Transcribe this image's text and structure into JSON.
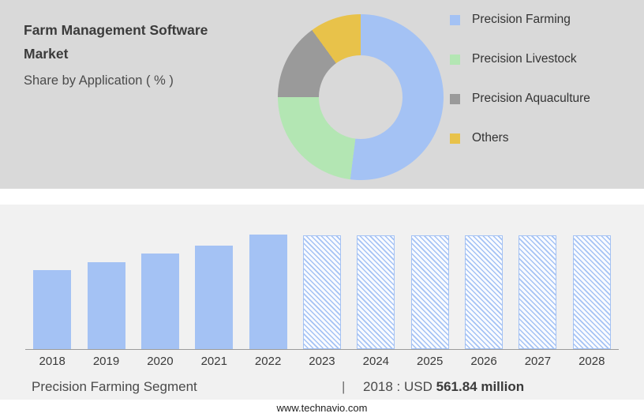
{
  "header": {
    "title": "Farm Management Software Market",
    "subtitle": "Share by Application ( % )"
  },
  "legend": [
    {
      "label": "Precision Farming",
      "color": "#a4c2f4"
    },
    {
      "label": "Precision Livestock",
      "color": "#b3e6b3"
    },
    {
      "label": "Precision Aquaculture",
      "color": "#9a9a9a"
    },
    {
      "label": "Others",
      "color": "#e8c24a"
    }
  ],
  "chart_data": [
    {
      "type": "pie",
      "donut": true,
      "title": "Share by Application ( % )",
      "labels": [
        "Precision Farming",
        "Precision Livestock",
        "Precision Aquaculture",
        "Others"
      ],
      "values": [
        52,
        23,
        15,
        10
      ],
      "colors": [
        "#a4c2f4",
        "#b3e6b3",
        "#9a9a9a",
        "#e8c24a"
      ],
      "legend_position": "right"
    },
    {
      "type": "bar",
      "categories": [
        "2018",
        "2019",
        "2020",
        "2021",
        "2022",
        "2023",
        "2024",
        "2025",
        "2026",
        "2027",
        "2028"
      ],
      "values": [
        561.84,
        619,
        680,
        737,
        815,
        810,
        810,
        810,
        810,
        810,
        810
      ],
      "forecast_from_index": 5,
      "bar_color": "#a4c2f4",
      "forecast_style": "hatched",
      "xlabel": "",
      "ylabel": "",
      "ylim": [
        0,
        900
      ],
      "grid": false,
      "annotation": "2018 : USD 561.84 million"
    }
  ],
  "footer": {
    "segment_label": "Precision Farming Segment",
    "separator": "|",
    "value_prefix": "2018 : USD ",
    "value_bold": "561.84 million"
  },
  "website": "www.technavio.com",
  "colors": {
    "top_panel_bg": "#d9d9d9",
    "bottom_panel_bg": "#f1f1f1",
    "accent_blue": "#a4c2f4"
  }
}
